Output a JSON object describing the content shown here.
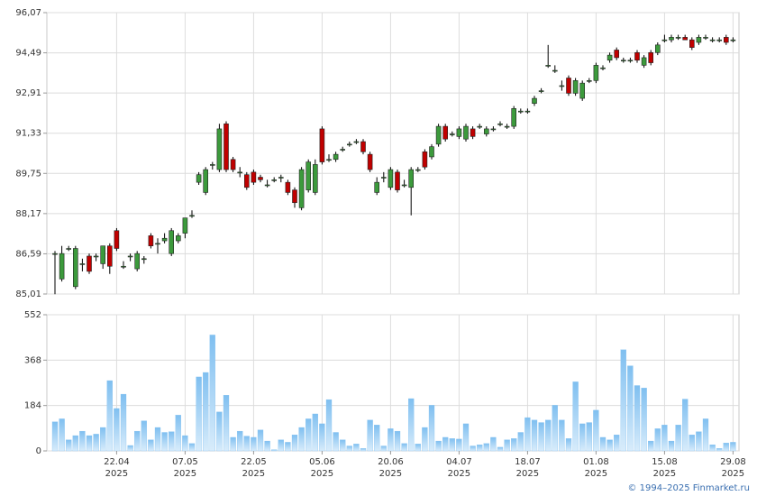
{
  "chart_data": [
    {
      "type": "candlestick",
      "open": [
        86.6,
        85.6,
        86.8,
        85.3,
        86.2,
        86.5,
        86.5,
        86.2,
        86.9,
        87.5,
        86.1,
        86.5,
        86.0,
        86.4,
        87.3,
        87.0,
        87.1,
        86.6,
        87.1,
        87.4,
        88.1,
        89.4,
        89.0,
        90.1,
        89.9,
        91.7,
        90.3,
        89.8,
        89.7,
        89.8,
        89.6,
        89.3,
        89.5,
        89.6,
        89.4,
        89.1,
        88.4,
        89.1,
        89.0,
        91.5,
        90.3,
        90.3,
        90.7,
        90.9,
        91.0,
        91.0,
        90.5,
        89.0,
        89.6,
        89.2,
        89.8,
        89.3,
        89.2,
        89.9,
        90.6,
        90.4,
        90.9,
        91.6,
        91.3,
        91.2,
        91.1,
        91.5,
        91.6,
        91.3,
        91.5,
        91.7,
        91.6,
        91.6,
        92.2,
        92.2,
        92.5,
        93.0,
        94.0,
        93.8,
        93.2,
        93.5,
        92.9,
        92.7,
        93.4,
        93.4,
        93.9,
        94.2,
        94.6,
        94.2,
        94.2,
        94.5,
        94.0,
        94.5,
        94.5,
        95.0,
        95.0,
        95.1,
        95.1,
        95.0,
        94.9,
        95.1,
        95.0,
        95.0,
        95.1,
        95.0
      ],
      "high": [
        86.7,
        86.9,
        86.9,
        86.9,
        86.4,
        86.6,
        86.6,
        86.9,
        87.0,
        87.6,
        86.3,
        86.6,
        86.7,
        86.5,
        87.4,
        87.2,
        87.4,
        87.6,
        87.4,
        88.0,
        88.3,
        89.8,
        90.0,
        90.2,
        91.7,
        91.8,
        90.4,
        90.0,
        89.8,
        89.9,
        89.7,
        89.5,
        89.6,
        89.7,
        89.5,
        89.2,
        90.0,
        90.3,
        90.3,
        91.6,
        90.5,
        90.6,
        90.8,
        91.0,
        91.1,
        91.1,
        90.6,
        89.6,
        89.8,
        90.0,
        89.9,
        89.5,
        90.0,
        90.0,
        90.7,
        90.9,
        91.7,
        91.7,
        91.4,
        91.6,
        91.7,
        91.6,
        91.7,
        91.6,
        91.6,
        91.8,
        91.7,
        92.4,
        92.3,
        92.3,
        92.8,
        93.1,
        94.8,
        94.0,
        93.4,
        93.6,
        93.5,
        93.4,
        93.5,
        94.1,
        94.0,
        94.5,
        94.7,
        94.3,
        94.3,
        94.6,
        94.4,
        94.6,
        94.9,
        95.2,
        95.2,
        95.2,
        95.2,
        95.1,
        95.2,
        95.2,
        95.1,
        95.1,
        95.2,
        95.1
      ],
      "low": [
        85.0,
        85.5,
        86.7,
        85.2,
        85.9,
        85.8,
        86.3,
        86.0,
        85.8,
        86.7,
        86.0,
        86.3,
        85.9,
        86.2,
        86.8,
        86.6,
        87.0,
        86.5,
        87.0,
        87.2,
        88.0,
        89.3,
        88.9,
        89.9,
        89.8,
        89.8,
        89.8,
        89.6,
        89.1,
        89.3,
        89.4,
        89.2,
        89.4,
        89.4,
        88.9,
        88.4,
        88.3,
        89.0,
        88.9,
        90.1,
        90.2,
        90.2,
        90.6,
        90.8,
        90.9,
        90.5,
        89.8,
        88.9,
        89.4,
        89.1,
        89.0,
        89.2,
        88.1,
        89.8,
        89.9,
        90.3,
        90.8,
        91.0,
        91.2,
        91.1,
        91.0,
        91.1,
        91.5,
        91.2,
        91.4,
        91.6,
        91.5,
        91.5,
        92.1,
        92.1,
        92.4,
        92.9,
        93.9,
        93.7,
        93.0,
        92.8,
        92.8,
        92.6,
        93.3,
        93.3,
        93.8,
        94.1,
        94.2,
        94.1,
        94.1,
        94.1,
        93.9,
        94.0,
        94.4,
        94.9,
        94.9,
        95.0,
        95.0,
        94.6,
        94.8,
        95.0,
        94.9,
        94.9,
        94.8,
        94.9
      ],
      "close": [
        86.6,
        86.6,
        86.8,
        86.8,
        86.2,
        85.9,
        86.5,
        86.9,
        86.1,
        86.8,
        86.1,
        86.5,
        86.6,
        86.4,
        86.9,
        87.0,
        87.2,
        87.5,
        87.3,
        88.0,
        88.1,
        89.7,
        89.9,
        90.1,
        91.5,
        89.9,
        89.9,
        89.8,
        89.2,
        89.4,
        89.5,
        89.3,
        89.5,
        89.6,
        89.0,
        88.6,
        89.9,
        90.2,
        90.1,
        90.2,
        90.3,
        90.5,
        90.7,
        90.9,
        91.0,
        90.6,
        89.9,
        89.4,
        89.6,
        89.9,
        89.1,
        89.3,
        89.9,
        89.9,
        90.0,
        90.8,
        91.6,
        91.1,
        91.3,
        91.5,
        91.6,
        91.2,
        91.6,
        91.5,
        91.5,
        91.7,
        91.6,
        92.3,
        92.2,
        92.2,
        92.7,
        93.0,
        94.0,
        93.8,
        93.2,
        92.9,
        93.4,
        93.3,
        93.4,
        94.0,
        93.9,
        94.4,
        94.3,
        94.2,
        94.2,
        94.2,
        94.3,
        94.1,
        94.8,
        95.0,
        95.1,
        95.1,
        95.0,
        94.7,
        95.1,
        95.1,
        95.0,
        95.0,
        94.9,
        95.0
      ],
      "up_color": "#3c9a3c",
      "down_color": "#c00000",
      "ylim": [
        85.01,
        96.07
      ],
      "yticks": [
        {
          "value": 85.01,
          "label": "85,01"
        },
        {
          "value": 86.59,
          "label": "86,59"
        },
        {
          "value": 88.17,
          "label": "88,17"
        },
        {
          "value": 89.75,
          "label": "89,75"
        },
        {
          "value": 91.33,
          "label": "91,33"
        },
        {
          "value": 92.91,
          "label": "92,91"
        },
        {
          "value": 94.49,
          "label": "94,49"
        },
        {
          "value": 96.07,
          "label": "96,07"
        }
      ],
      "grid": true
    },
    {
      "type": "bar",
      "categories": [
        null,
        null,
        null,
        null,
        null,
        null,
        null,
        null,
        null,
        "22.04",
        null,
        null,
        null,
        null,
        null,
        null,
        null,
        null,
        null,
        "07.05",
        null,
        null,
        null,
        null,
        null,
        null,
        null,
        null,
        null,
        "22.05",
        null,
        null,
        null,
        null,
        null,
        null,
        null,
        null,
        null,
        "05.06",
        null,
        null,
        null,
        null,
        null,
        null,
        null,
        null,
        null,
        "20.06",
        null,
        null,
        null,
        null,
        null,
        null,
        null,
        null,
        null,
        "04.07",
        null,
        null,
        null,
        null,
        null,
        null,
        null,
        null,
        null,
        "18.07",
        null,
        null,
        null,
        null,
        null,
        null,
        null,
        null,
        null,
        "01.08",
        null,
        null,
        null,
        null,
        null,
        null,
        null,
        null,
        null,
        "15.08",
        null,
        null,
        null,
        null,
        null,
        null,
        null,
        null,
        null,
        "29.08"
      ],
      "category_years": [
        null,
        null,
        null,
        null,
        null,
        null,
        null,
        null,
        null,
        "2025",
        null,
        null,
        null,
        null,
        null,
        null,
        null,
        null,
        null,
        "2025",
        null,
        null,
        null,
        null,
        null,
        null,
        null,
        null,
        null,
        "2025",
        null,
        null,
        null,
        null,
        null,
        null,
        null,
        null,
        null,
        "2025",
        null,
        null,
        null,
        null,
        null,
        null,
        null,
        null,
        null,
        "2025",
        null,
        null,
        null,
        null,
        null,
        null,
        null,
        null,
        null,
        "2025",
        null,
        null,
        null,
        null,
        null,
        null,
        null,
        null,
        null,
        "2025",
        null,
        null,
        null,
        null,
        null,
        null,
        null,
        null,
        null,
        "2025",
        null,
        null,
        null,
        null,
        null,
        null,
        null,
        null,
        null,
        "2025",
        null,
        null,
        null,
        null,
        null,
        null,
        null,
        null,
        null,
        "2025"
      ],
      "values": [
        118,
        130,
        45,
        62,
        80,
        62,
        68,
        95,
        285,
        172,
        230,
        22,
        80,
        122,
        45,
        95,
        75,
        78,
        145,
        62,
        30,
        300,
        318,
        470,
        158,
        226,
        55,
        80,
        60,
        55,
        85,
        40,
        5,
        45,
        35,
        65,
        95,
        130,
        150,
        110,
        208,
        75,
        45,
        20,
        28,
        10,
        125,
        105,
        20,
        90,
        80,
        30,
        212,
        28,
        95,
        185,
        40,
        55,
        50,
        48,
        110,
        20,
        25,
        30,
        55,
        15,
        45,
        50,
        75,
        135,
        125,
        115,
        125,
        185,
        125,
        50,
        280,
        110,
        115,
        165,
        55,
        45,
        65,
        410,
        345,
        265,
        255,
        40,
        90,
        105,
        40,
        105,
        210,
        65,
        78,
        130,
        25,
        10,
        32,
        35
      ],
      "color": "#7fbff0",
      "ylim": [
        0,
        552
      ],
      "yticks": [
        0,
        184,
        368,
        552
      ],
      "grid": true
    }
  ],
  "footer": "© 1994–2025 Finmarket.ru"
}
